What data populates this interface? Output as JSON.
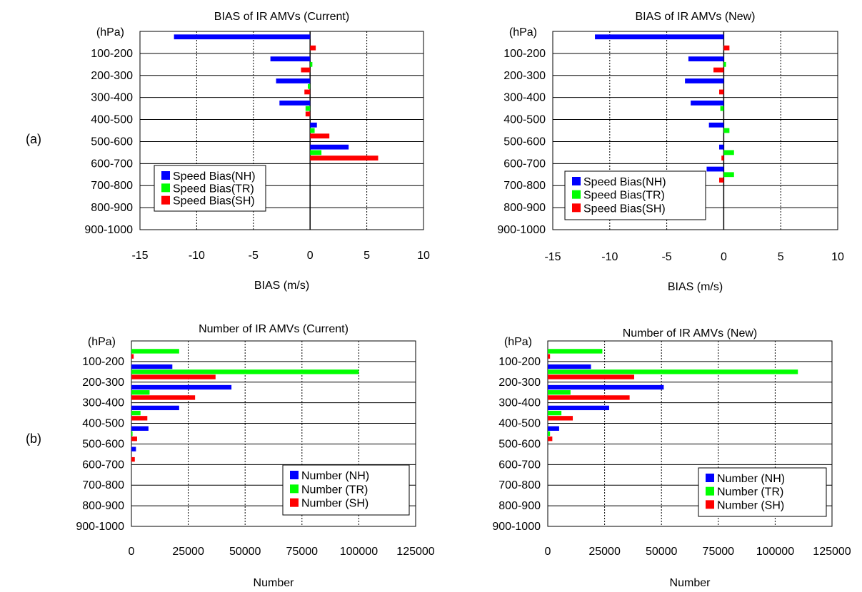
{
  "panel_labels": {
    "a": "(a)",
    "b": "(b)"
  },
  "colors": {
    "NH": "#0000ff",
    "TR": "#00ff00",
    "SH": "#ff0000"
  },
  "chart_data": [
    {
      "id": "bias-current",
      "type": "bar",
      "orientation": "horizontal",
      "title": "BIAS of IR AMVs (Current)",
      "xlabel": "BIAS (m/s)",
      "ylabel": "(hPa)",
      "categories": [
        "100-200",
        "200-300",
        "300-400",
        "400-500",
        "500-600",
        "600-700",
        "700-800",
        "800-900",
        "900-1000"
      ],
      "xlim": [
        -15,
        10
      ],
      "xticks": [
        "-15",
        "-10",
        "-5",
        "0",
        "5",
        "10"
      ],
      "grid": true,
      "legend_position": "bottom-left",
      "series": [
        {
          "name": "Speed Bias(NH)",
          "values": [
            -12.0,
            -3.5,
            -3.0,
            -2.7,
            0.6,
            3.4,
            null,
            null,
            null
          ]
        },
        {
          "name": "Speed Bias(TR)",
          "values": [
            0.0,
            0.2,
            -0.2,
            -0.4,
            0.4,
            1.0,
            null,
            null,
            null
          ]
        },
        {
          "name": "Speed Bias(SH)",
          "values": [
            0.5,
            -0.8,
            -0.5,
            -0.4,
            1.7,
            6.0,
            null,
            null,
            null
          ]
        }
      ]
    },
    {
      "id": "bias-new",
      "type": "bar",
      "orientation": "horizontal",
      "title": "BIAS of IR AMVs (New)",
      "xlabel": "BIAS (m/s)",
      "ylabel": "(hPa)",
      "categories": [
        "100-200",
        "200-300",
        "300-400",
        "400-500",
        "500-600",
        "600-700",
        "700-800",
        "800-900",
        "900-1000"
      ],
      "xlim": [
        -15,
        10
      ],
      "xticks": [
        "-15",
        "-10",
        "-5",
        "0",
        "5",
        "10"
      ],
      "grid": true,
      "legend_position": "bottom-left",
      "series": [
        {
          "name": "Speed Bias(NH)",
          "values": [
            -11.3,
            -3.1,
            -3.4,
            -2.9,
            -1.3,
            -0.4,
            -1.5,
            null,
            null
          ]
        },
        {
          "name": "Speed Bias(TR)",
          "values": [
            0.0,
            0.2,
            0.0,
            -0.3,
            0.5,
            0.9,
            0.9,
            null,
            null
          ]
        },
        {
          "name": "Speed Bias(SH)",
          "values": [
            0.5,
            -0.9,
            -0.4,
            0.0,
            0.0,
            -0.2,
            -0.4,
            null,
            null
          ]
        }
      ]
    },
    {
      "id": "number-current",
      "type": "bar",
      "orientation": "horizontal",
      "title": "Number of IR AMVs (Current)",
      "xlabel": "Number",
      "ylabel": "(hPa)",
      "categories": [
        "100-200",
        "200-300",
        "300-400",
        "400-500",
        "500-600",
        "600-700",
        "700-800",
        "800-900",
        "900-1000"
      ],
      "xlim": [
        0,
        125000
      ],
      "xticks": [
        "0",
        "25000",
        "50000",
        "75000",
        "100000",
        "125000"
      ],
      "grid": true,
      "legend_position": "bottom-right",
      "series": [
        {
          "name": "Number (NH)",
          "values": [
            0,
            18000,
            44000,
            21000,
            7500,
            2000,
            0,
            0,
            0
          ]
        },
        {
          "name": "Number (TR)",
          "values": [
            21000,
            100000,
            8000,
            4000,
            500,
            0,
            0,
            0,
            0
          ]
        },
        {
          "name": "Number (SH)",
          "values": [
            1000,
            37000,
            28000,
            7000,
            2500,
            1500,
            0,
            0,
            0
          ]
        }
      ]
    },
    {
      "id": "number-new",
      "type": "bar",
      "orientation": "horizontal",
      "title": "Number of IR AMVs (New)",
      "xlabel": "Number",
      "ylabel": "(hPa)",
      "categories": [
        "100-200",
        "200-300",
        "300-400",
        "400-500",
        "500-600",
        "600-700",
        "700-800",
        "800-900",
        "900-1000"
      ],
      "xlim": [
        0,
        125000
      ],
      "xticks": [
        "0",
        "25000",
        "50000",
        "75000",
        "100000",
        "125000"
      ],
      "grid": true,
      "legend_position": "bottom-right",
      "series": [
        {
          "name": "Number (NH)",
          "values": [
            0,
            19000,
            51000,
            27000,
            5000,
            0,
            0,
            0,
            0
          ]
        },
        {
          "name": "Number (TR)",
          "values": [
            24000,
            110000,
            10000,
            6000,
            1000,
            0,
            0,
            0,
            0
          ]
        },
        {
          "name": "Number (SH)",
          "values": [
            1000,
            38000,
            36000,
            11000,
            2000,
            0,
            0,
            0,
            0
          ]
        }
      ]
    }
  ]
}
